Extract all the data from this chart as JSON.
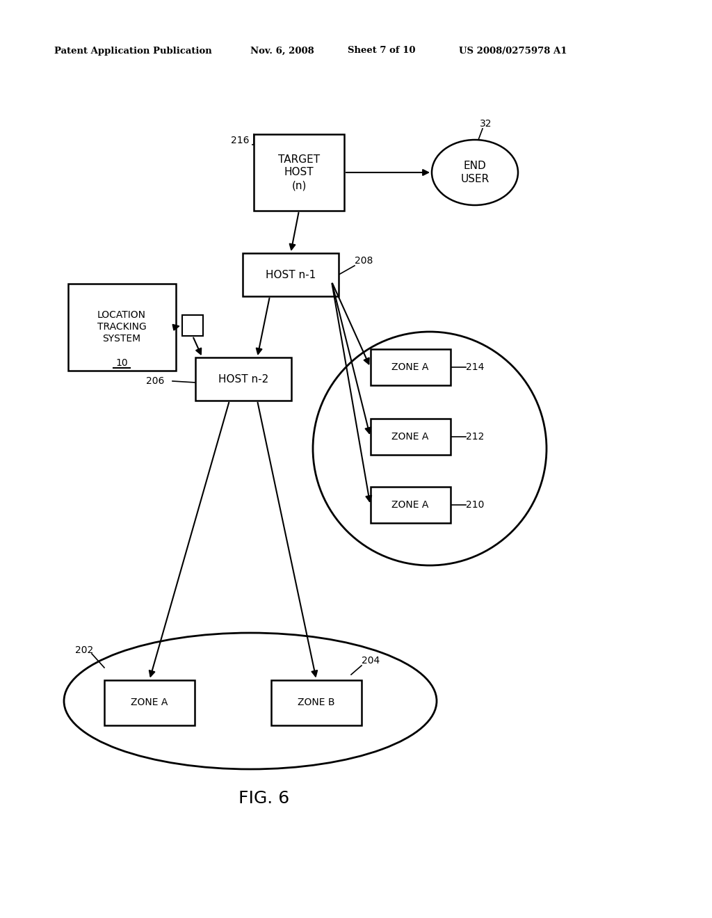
{
  "bg_color": "#ffffff",
  "header_text": "Patent Application Publication",
  "header_date": "Nov. 6, 2008",
  "header_sheet": "Sheet 7 of 10",
  "header_patent": "US 2008/0275978 A1",
  "fig_label": "FIG. 6"
}
